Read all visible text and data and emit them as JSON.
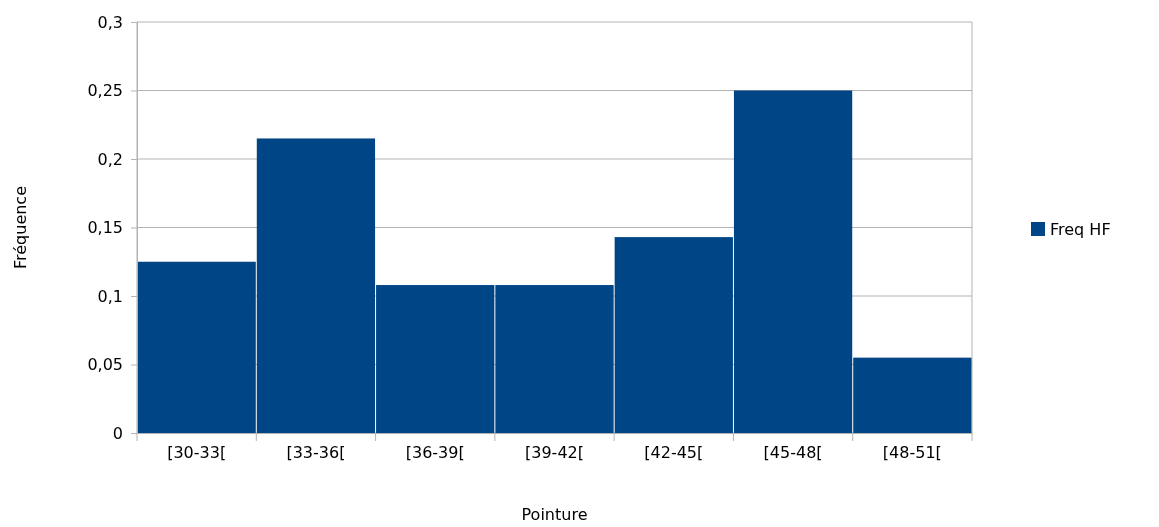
{
  "chart_data": {
    "type": "bar",
    "xlabel": "Pointure",
    "ylabel": "Fréquence",
    "categories": [
      "[30-33[",
      "[33-36[",
      "[36-39[",
      "[39-42[",
      "[42-45[",
      "[45-48[",
      "[48-51["
    ],
    "series": [
      {
        "name": "Freq HF",
        "color": "#004586",
        "values": [
          0.125,
          0.215,
          0.108,
          0.108,
          0.143,
          0.25,
          0.055
        ]
      }
    ],
    "ylim": [
      0,
      0.3
    ],
    "yticks": [
      {
        "value": 0,
        "label": "0"
      },
      {
        "value": 0.05,
        "label": "0,05"
      },
      {
        "value": 0.1,
        "label": "0,1"
      },
      {
        "value": 0.15,
        "label": "0,15"
      },
      {
        "value": 0.2,
        "label": "0,2"
      },
      {
        "value": 0.25,
        "label": "0,25"
      },
      {
        "value": 0.3,
        "label": "0,3"
      }
    ],
    "grid": "y",
    "legend": "right"
  }
}
